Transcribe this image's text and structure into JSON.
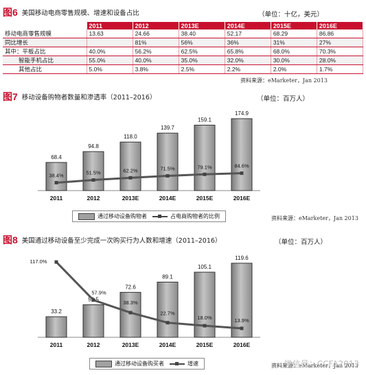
{
  "fig6": {
    "tag": "图6",
    "title": "美国移动电商零售规模、增速和设备占比",
    "unit": "（单位：十亿，美元）",
    "source": "资料来源：eMarketer，Jan 2013",
    "columns": [
      "",
      "2011",
      "2012",
      "2013E",
      "2014E",
      "2015E",
      "2016E"
    ],
    "rows": [
      {
        "label": "移动电商零售规模",
        "values": [
          "13.63",
          "24.66",
          "38.40",
          "52.17",
          "68.29",
          "86.86"
        ]
      },
      {
        "label": "同比增长",
        "values": [
          "",
          "81%",
          "56%",
          "36%",
          "31%",
          "27%"
        ]
      },
      {
        "label": "其中：平板占比",
        "values": [
          "40.0%",
          "56.2%",
          "62.5%",
          "65.8%",
          "68.0%",
          "70.3%"
        ]
      },
      {
        "label": "智能手机占比",
        "values": [
          "55.0%",
          "40.0%",
          "35.0%",
          "32.0%",
          "30.0%",
          "28.0%"
        ]
      },
      {
        "label": "其他占比",
        "values": [
          "5.0%",
          "3.8%",
          "2.5%",
          "2.2%",
          "2.0%",
          "1.7%"
        ]
      }
    ]
  },
  "fig7": {
    "tag": "图7",
    "title": "移动设备购物者数量和渗透率（2011–2016）",
    "unit": "（单位：百万人）",
    "source": "资料来源：eMarketer，Jan 2013",
    "legend_bar": "通过移动设备购物者",
    "legend_line": "占电商购物者的比例"
  },
  "fig8": {
    "tag": "图8",
    "title": "美国通过移动设备至少完成一次购买行为人数和增速（2011–2016）",
    "unit": "（单位：百万人）",
    "source": "资料来源：eMarketer，Jan 2013",
    "legend_bar": "通过移动设备购买者",
    "legend_line": "增速"
  },
  "watermark": "微信号：CCFA2013",
  "chart_data": [
    {
      "type": "table",
      "title": "美国移动电商零售规模、增速和设备占比",
      "columns": [
        "2011",
        "2012",
        "2013E",
        "2014E",
        "2015E",
        "2016E"
      ],
      "rows": [
        {
          "name": "移动电商零售规模",
          "values": [
            13.63,
            24.66,
            38.4,
            52.17,
            68.29,
            86.86
          ]
        },
        {
          "name": "同比增长",
          "values": [
            null,
            "81%",
            "56%",
            "36%",
            "31%",
            "27%"
          ]
        },
        {
          "name": "其中：平板占比",
          "values": [
            "40.0%",
            "56.2%",
            "62.5%",
            "65.8%",
            "68.0%",
            "70.3%"
          ]
        },
        {
          "name": "智能手机占比",
          "values": [
            "55.0%",
            "40.0%",
            "35.0%",
            "32.0%",
            "30.0%",
            "28.0%"
          ]
        },
        {
          "name": "其他占比",
          "values": [
            "5.0%",
            "3.8%",
            "2.5%",
            "2.2%",
            "2.0%",
            "1.7%"
          ]
        }
      ]
    },
    {
      "type": "bar",
      "title": "移动设备购物者数量和渗透率（2011–2016）",
      "categories": [
        "2011",
        "2012",
        "2013E",
        "2014E",
        "2015E",
        "2016E"
      ],
      "series": [
        {
          "name": "通过移动设备购物者",
          "type": "bar",
          "values": [
            68.4,
            94.8,
            118.0,
            139.7,
            159.1,
            174.9
          ],
          "labels": [
            "68.4",
            "94.8",
            "118.0",
            "139.7",
            "159.1",
            "174.9"
          ]
        },
        {
          "name": "占电商购物者的比例",
          "type": "line",
          "values": [
            38.4,
            51.5,
            62.2,
            71.5,
            79.1,
            84.6
          ],
          "labels": [
            "38.4%",
            "51.5%",
            "62.2%",
            "71.5%",
            "79.1%",
            "84.6%"
          ]
        }
      ],
      "ylim": [
        0,
        200
      ],
      "y2lim": [
        0,
        400
      ],
      "grid": false,
      "legend": "bottom"
    },
    {
      "type": "bar",
      "title": "美国通过移动设备至少完成一次购买行为人数和增速（2011–2016）",
      "categories": [
        "2011",
        "2012",
        "2013E",
        "2014E",
        "2015E",
        "2016E"
      ],
      "series": [
        {
          "name": "通过移动设备购买者",
          "type": "bar",
          "values": [
            33.2,
            52.5,
            72.6,
            89.1,
            105.1,
            119.6
          ],
          "labels": [
            "33.2",
            "52.5",
            "72.6",
            "89.1",
            "105.1",
            "119.6"
          ]
        },
        {
          "name": "增速",
          "type": "line",
          "values": [
            117.0,
            57.9,
            38.3,
            22.7,
            18.0,
            13.9
          ],
          "labels": [
            "117.0%",
            "57.9%",
            "38.3%",
            "22.7%",
            "18.0%",
            "13.9%"
          ]
        }
      ],
      "ylim": [
        0,
        135
      ],
      "y2lim": [
        0,
        130
      ],
      "grid": false,
      "legend": "bottom"
    }
  ]
}
